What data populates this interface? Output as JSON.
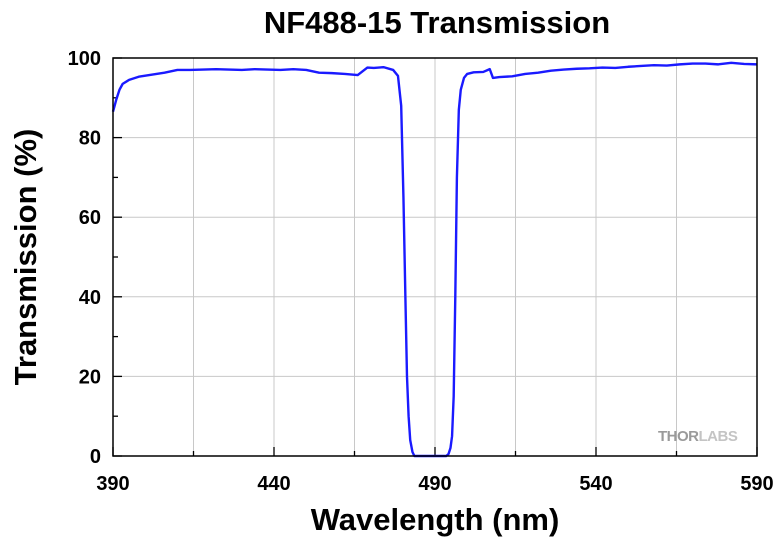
{
  "chart_data": {
    "type": "line",
    "title": "NF488-15 Transmission",
    "xlabel": "Wavelength (nm)",
    "ylabel": "Transmission (%)",
    "xlim": [
      390,
      590
    ],
    "ylim": [
      0,
      100
    ],
    "xticks": [
      390,
      440,
      490,
      540,
      590
    ],
    "yticks": [
      0,
      20,
      40,
      60,
      80,
      100
    ],
    "grid": true,
    "legend": "none",
    "watermark": {
      "part1": "THOR",
      "part2": "LABS"
    },
    "series": [
      {
        "color": "#1a1aff",
        "x": [
          390,
          391,
          392,
          393,
          395,
          398,
          402,
          406,
          410,
          414,
          418,
          422,
          426,
          430,
          434,
          438,
          442,
          446,
          450,
          454,
          458,
          462,
          466,
          469,
          471,
          474,
          477,
          478.5,
          479.5,
          480.2,
          480.8,
          481.3,
          481.8,
          482.3,
          483,
          483.6,
          484.3,
          485.5,
          487,
          490,
          492,
          493.5,
          494.2,
          494.8,
          495.3,
          495.8,
          496.3,
          496.8,
          497.4,
          498,
          499,
          500,
          502,
          505,
          507,
          508,
          510,
          514,
          518,
          522,
          526,
          530,
          534,
          538,
          542,
          546,
          550,
          554,
          558,
          562,
          566,
          570,
          574,
          578,
          582,
          586,
          590
        ],
        "y": [
          86.5,
          89.5,
          92,
          93.5,
          94.5,
          95.3,
          95.8,
          96.3,
          97,
          97,
          97.1,
          97.2,
          97.1,
          97,
          97.2,
          97.1,
          97,
          97.2,
          97,
          96.3,
          96.2,
          96,
          95.7,
          97.6,
          97.5,
          97.7,
          97,
          95.5,
          88,
          65,
          40,
          20,
          10,
          4,
          1,
          0,
          0,
          0,
          0,
          0,
          0,
          0,
          0.5,
          2,
          5,
          15,
          40,
          70,
          87,
          92,
          95,
          96,
          96.4,
          96.5,
          97.2,
          95,
          95.2,
          95.4,
          96,
          96.3,
          96.8,
          97.1,
          97.3,
          97.4,
          97.6,
          97.5,
          97.8,
          98,
          98.2,
          98.1,
          98.4,
          98.6,
          98.6,
          98.4,
          98.8,
          98.5,
          98.4
        ]
      }
    ]
  }
}
